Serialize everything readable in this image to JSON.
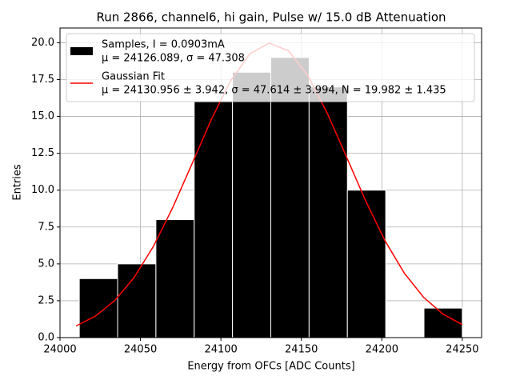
{
  "chart_data": {
    "type": "histogram",
    "title": "Run 2866, channel6, hi gain, Pulse w/ 15.0 dB Attenuation",
    "x_label": "Energy from OFCs [ADC Counts]",
    "y_label": "Entries",
    "bins": [
      24012.0,
      24035.8,
      24059.6,
      24083.4,
      24107.2,
      24131.0,
      24154.8,
      24178.6,
      24202.4,
      24226.2,
      24250.0
    ],
    "series": [
      {
        "name": "Samples, I = 0.0903mA",
        "detail": "μ = 24126.089, σ = 47.308",
        "color": "#000000",
        "values": [
          4,
          5,
          8,
          16,
          18,
          19,
          17,
          10,
          0,
          2
        ]
      },
      {
        "name": "Gaussian Fit",
        "detail": "μ = 24130.956 ± 3.942, σ = 47.614 ± 3.994, N = 19.982 ± 1.435",
        "color": "#ff0000",
        "type": "line",
        "x": [
          24010,
          24022,
          24034,
          24046,
          24058,
          24070,
          24082,
          24094,
          24106,
          24118,
          24130,
          24142,
          24154,
          24166,
          24178,
          24190,
          24202,
          24214,
          24226,
          24238,
          24250
        ],
        "values": [
          0.793,
          1.457,
          2.513,
          4.068,
          6.178,
          8.805,
          11.778,
          14.786,
          17.418,
          19.256,
          19.978,
          19.452,
          17.774,
          15.241,
          12.266,
          9.262,
          6.565,
          4.366,
          2.726,
          1.597,
          0.877
        ]
      }
    ],
    "xlim": [
      24000,
      24262
    ],
    "ylim": [
      0,
      21
    ],
    "xticks": [
      24000,
      24050,
      24100,
      24150,
      24200,
      24250
    ],
    "yticks": [
      {
        "value": 0,
        "label": "0.0"
      },
      2.5,
      {
        "value": 5,
        "label": "5.0"
      },
      7.5,
      {
        "value": 10,
        "label": "10.0"
      },
      12.5,
      {
        "value": 15,
        "label": "15.0"
      },
      17.5,
      {
        "value": 20,
        "label": "20.0"
      }
    ],
    "grid": true,
    "legend": "top"
  }
}
